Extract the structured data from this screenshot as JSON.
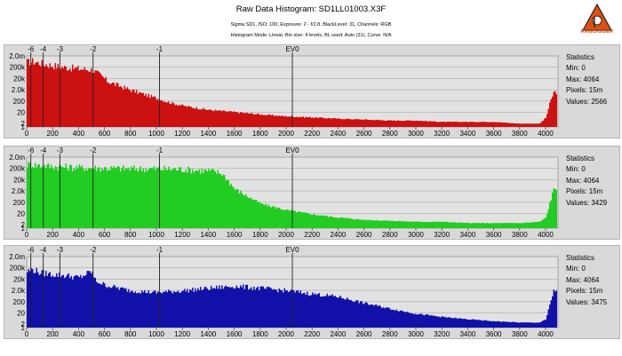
{
  "window": {
    "title": "Raw Data Histogram: SD1LL01003.X3F",
    "info_line1": "Sigma SD1, ISO: 100, Exposure: 2 - f/2.8, BlackLevel: 31, Channels: RGB",
    "info_line2": "Histogram Mode: Linear, Bin size: 4 levels, BL used: Auto (31), Curve: N/A"
  },
  "logo": {
    "name": "rawdigger-logo",
    "text": "RAWDIGGER",
    "color": "#e05010"
  },
  "axes": {
    "x_ticks": [
      0,
      200,
      400,
      600,
      800,
      1000,
      1200,
      1400,
      1600,
      1800,
      2000,
      2200,
      2400,
      2600,
      2800,
      3000,
      3200,
      3400,
      3600,
      3800,
      4000
    ],
    "x_tick_labels": [
      "0",
      "200",
      "400",
      "600",
      "800",
      "1000",
      "1200",
      "1400",
      "1600",
      "1800",
      "2000",
      "2200",
      "2400",
      "2600",
      "2800",
      "3000",
      "3200",
      "3400",
      "3600",
      "3800",
      "4000"
    ],
    "x_range": [
      0,
      4096
    ],
    "y_labels": [
      "2.0m",
      "200k",
      "20k",
      "2.0k",
      "200",
      "20",
      "2",
      "1"
    ],
    "y_scale": "log",
    "ev_marks": [
      {
        "label": "-6",
        "value": 32
      },
      {
        "label": "-4",
        "value": 128
      },
      {
        "label": "-3",
        "value": 256
      },
      {
        "label": "-2",
        "value": 512
      },
      {
        "label": "-1",
        "value": 1024
      },
      {
        "label": "EV0",
        "value": 2048
      }
    ]
  },
  "chart_data": [
    {
      "type": "area",
      "channel": "red",
      "color": "#cc1111",
      "x_range": [
        0,
        4096
      ],
      "y_scale": "log",
      "envelope_x": [
        0,
        40,
        120,
        200,
        300,
        400,
        500,
        560,
        620,
        700,
        800,
        900,
        1000,
        1100,
        1200,
        1400,
        1600,
        1800,
        2000,
        2200,
        2400,
        2600,
        2800,
        3000,
        3200,
        3400,
        3600,
        3800,
        3950,
        4000,
        4030,
        4060
      ],
      "envelope_y": [
        1200000,
        1500000,
        900000,
        600000,
        400000,
        300000,
        250000,
        80000,
        20000,
        8000,
        3000,
        1200,
        500,
        200,
        100,
        40,
        25,
        15,
        10,
        8,
        6,
        5,
        4,
        4,
        3,
        3,
        3,
        2,
        2,
        8,
        200,
        2000
      ],
      "statistics": {
        "header": "Statistics",
        "min": "Min: 0",
        "max": "Max: 4064",
        "pixels": "Pixels: 15m",
        "values": "Values: 2566"
      }
    },
    {
      "type": "area",
      "channel": "green",
      "color": "#22cc22",
      "x_range": [
        0,
        4096
      ],
      "y_scale": "log",
      "envelope_x": [
        0,
        60,
        150,
        250,
        400,
        600,
        800,
        1000,
        1200,
        1400,
        1500,
        1550,
        1600,
        1700,
        1800,
        2000,
        2200,
        2400,
        2600,
        2800,
        3000,
        3200,
        3400,
        3600,
        3800,
        3950,
        4000,
        4030,
        4060
      ],
      "envelope_y": [
        1000000,
        900000,
        700000,
        600000,
        500000,
        450000,
        400000,
        400000,
        350000,
        250000,
        150000,
        30000,
        5000,
        1000,
        200,
        50,
        20,
        10,
        6,
        5,
        4,
        4,
        3,
        3,
        3,
        4,
        10,
        300,
        5000
      ],
      "statistics": {
        "header": "Statistics",
        "min": "Min: 0",
        "max": "Max: 4064",
        "pixels": "Pixels: 15m",
        "values": "Values: 3429"
      }
    },
    {
      "type": "area",
      "channel": "blue",
      "color": "#1111aa",
      "x_range": [
        0,
        4096
      ],
      "y_scale": "log",
      "envelope_x": [
        0,
        40,
        100,
        200,
        300,
        400,
        500,
        520,
        600,
        800,
        1000,
        1200,
        1400,
        1600,
        1800,
        2000,
        2200,
        2400,
        2600,
        2800,
        3000,
        3200,
        3400,
        3600,
        3800,
        3950,
        4000,
        4030,
        4060
      ],
      "envelope_y": [
        200000,
        300000,
        150000,
        100000,
        80000,
        50000,
        200000,
        30000,
        10000,
        3000,
        2000,
        3000,
        5000,
        8000,
        5000,
        3000,
        1500,
        800,
        200,
        60,
        20,
        10,
        6,
        4,
        3,
        3,
        6,
        200,
        3000
      ],
      "statistics": {
        "header": "Statistics",
        "min": "Min: 0",
        "max": "Max: 4064",
        "pixels": "Pixels: 15m",
        "values": "Values: 3475"
      }
    }
  ]
}
